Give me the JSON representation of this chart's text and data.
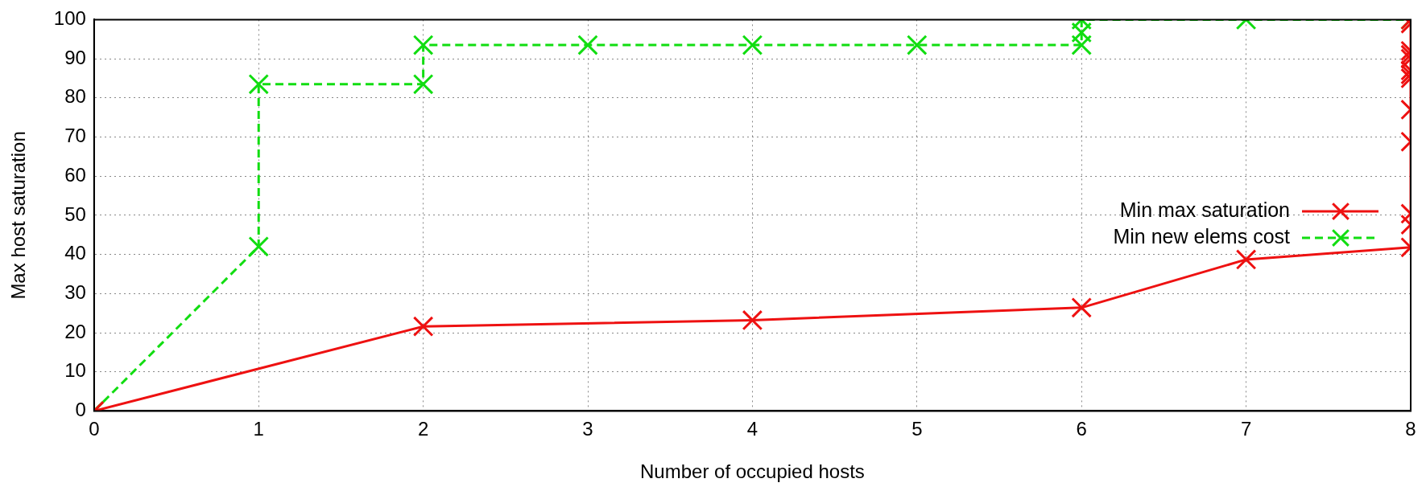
{
  "chart_data": {
    "type": "line",
    "xlabel": "Number of occupied hosts",
    "ylabel": "Max host saturation",
    "xlim": [
      0,
      8
    ],
    "xticks": [
      0,
      1,
      2,
      3,
      4,
      5,
      6,
      7,
      8
    ],
    "ylim": [
      0,
      100
    ],
    "yticks": [
      0,
      10,
      20,
      30,
      40,
      50,
      60,
      70,
      80,
      90,
      100
    ],
    "grid": true,
    "legend": "right",
    "series": [
      {
        "name": "Min max saturation",
        "color": "#ee1111",
        "marker": "cross",
        "line_style": "solid",
        "x": [
          0,
          2,
          4,
          6,
          7,
          8,
          8,
          8,
          8,
          8,
          8,
          8,
          8,
          8,
          8,
          8,
          8,
          8
        ],
        "values": [
          0,
          21.6,
          23.2,
          26.4,
          38.7,
          41.8,
          47.6,
          50.4,
          68.8,
          77,
          85,
          86,
          87,
          90,
          91,
          92,
          99,
          100
        ]
      },
      {
        "name": "Min new elems cost",
        "color": "#11dd11",
        "marker": "cross",
        "line_style": "dashed",
        "x": [
          0,
          1,
          1,
          2,
          2,
          3,
          4,
          5,
          6,
          6,
          6,
          7,
          8
        ],
        "values": [
          0,
          42,
          83.5,
          83.5,
          93.5,
          93.5,
          93.5,
          93.5,
          93.5,
          96.7,
          100,
          100,
          100
        ]
      }
    ]
  }
}
